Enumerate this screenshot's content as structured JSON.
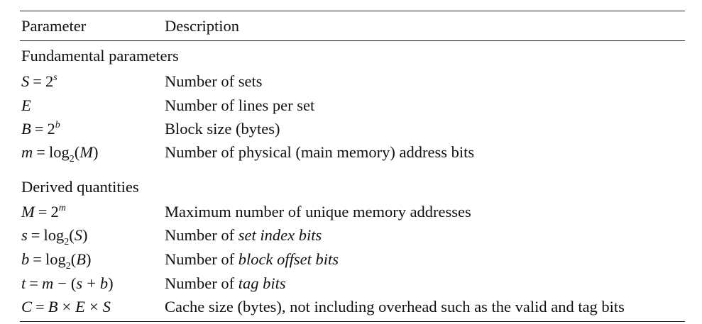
{
  "header": {
    "parameter": "Parameter",
    "description": "Description"
  },
  "sections": [
    {
      "title": "Fundamental parameters",
      "rows": [
        {
          "param": "S = 2^s",
          "description": "Number of sets"
        },
        {
          "param": "E",
          "description": "Number of lines per set"
        },
        {
          "param": "B = 2^b",
          "description": "Block size (bytes)"
        },
        {
          "param": "m = log2(M)",
          "description": "Number of physical (main memory) address bits"
        }
      ]
    },
    {
      "title": "Derived quantities",
      "rows": [
        {
          "param": "M = 2^m",
          "description": "Maximum number of unique memory addresses"
        },
        {
          "param": "s = log2(S)",
          "description_prefix": "Number of ",
          "description_emph": "set index bits"
        },
        {
          "param": "b = log2(B)",
          "description_prefix": "Number of ",
          "description_emph": "block offset bits"
        },
        {
          "param": "t = m − (s + b)",
          "description_prefix": "Number of ",
          "description_emph": "tag bits"
        },
        {
          "param": "C = B × E × S",
          "description": "Cache size (bytes), not including overhead such as the valid and tag bits"
        }
      ]
    }
  ]
}
